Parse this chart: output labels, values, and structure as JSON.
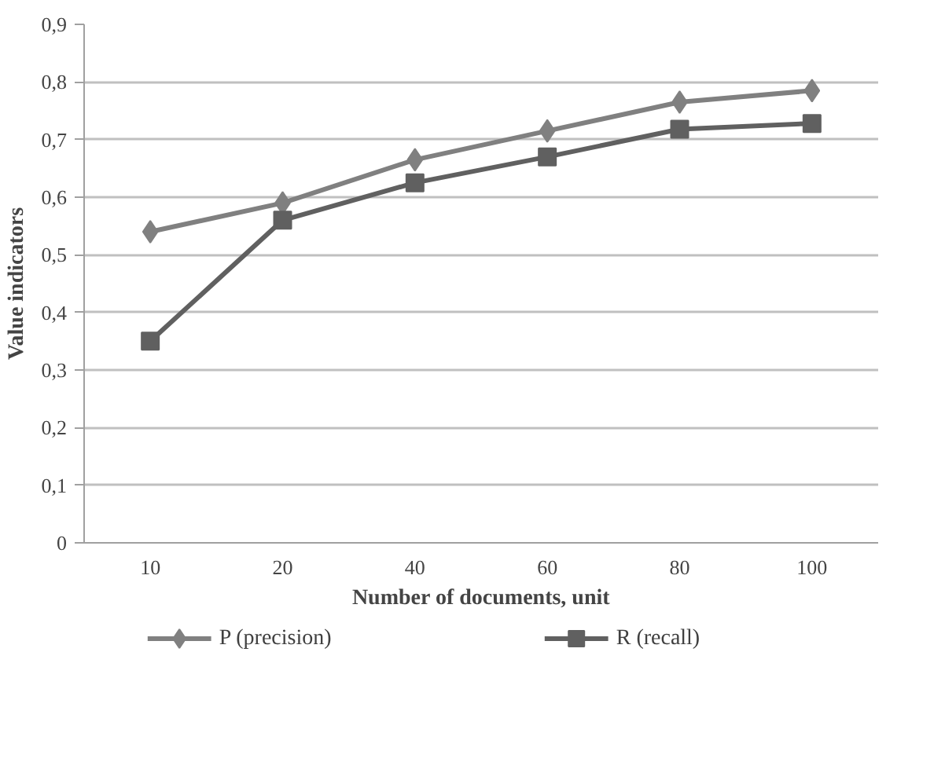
{
  "chart_data": {
    "type": "line",
    "xlabel": "Number of documents, unit",
    "ylabel": "Value indicators",
    "categories": [
      "10",
      "20",
      "40",
      "60",
      "80",
      "100"
    ],
    "series": [
      {
        "name": "P (precision)",
        "color": "#808080",
        "marker": "diamond",
        "values": [
          0.54,
          0.59,
          0.665,
          0.715,
          0.765,
          0.785
        ]
      },
      {
        "name": "R (recall)",
        "color": "#606060",
        "marker": "square",
        "values": [
          0.35,
          0.56,
          0.625,
          0.67,
          0.718,
          0.728
        ]
      }
    ],
    "ylim": [
      0,
      0.9
    ],
    "yticks": [
      0,
      {
        "value": 0.1,
        "label": "0,1"
      },
      {
        "value": 0.2,
        "label": "0,2"
      },
      {
        "value": 0.3,
        "label": "0,3"
      },
      {
        "value": 0.4,
        "label": "0,4"
      },
      {
        "value": 0.5,
        "label": "0,5"
      },
      {
        "value": 0.6,
        "label": "0,6"
      },
      {
        "value": 0.7,
        "label": "0,7"
      },
      {
        "value": 0.8,
        "label": "0,8"
      },
      {
        "value": 0.9,
        "label": "0,9"
      }
    ],
    "grid": "y",
    "legend": "bottom",
    "line_style": "solid"
  }
}
